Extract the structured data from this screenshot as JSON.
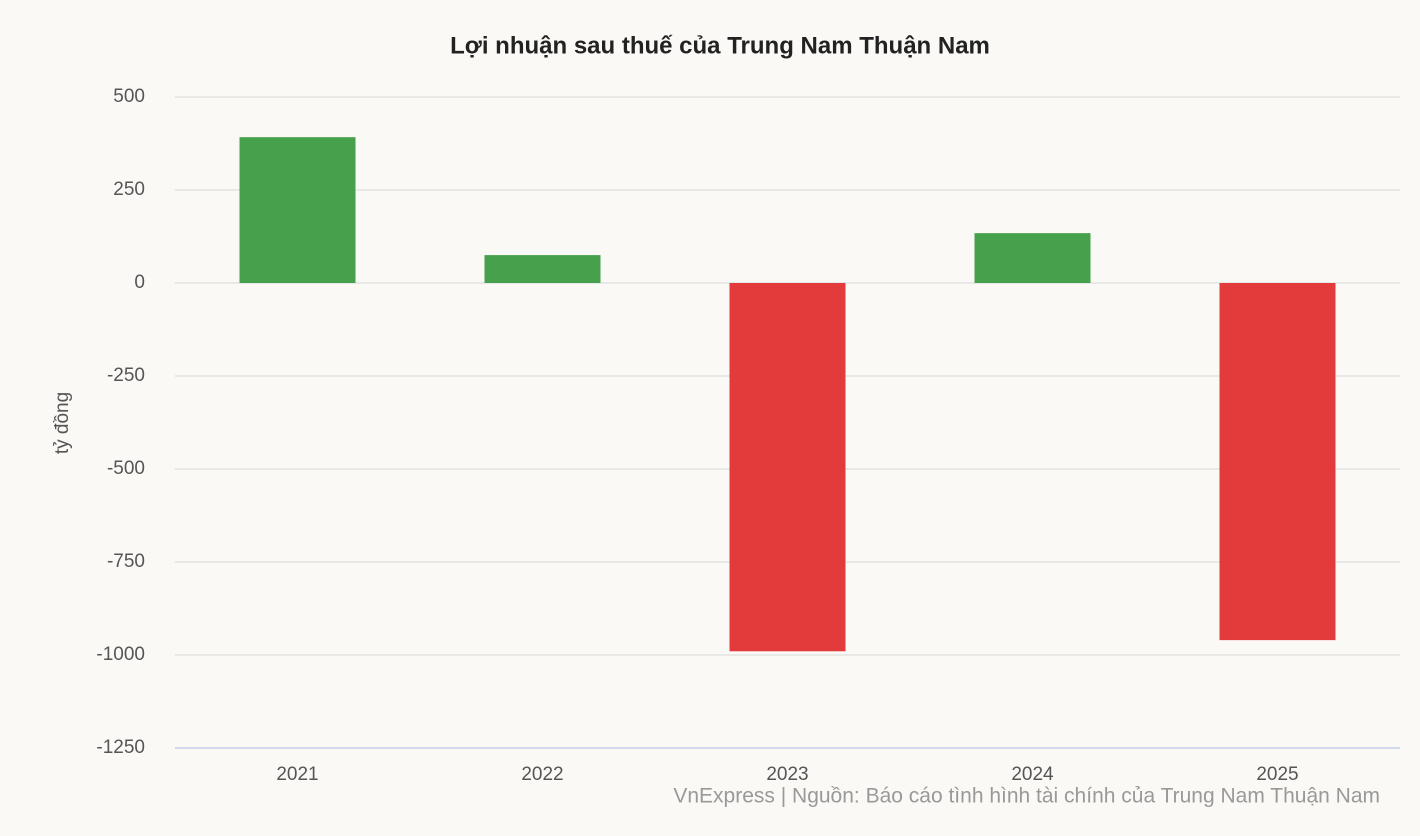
{
  "chart_data": {
    "type": "bar",
    "title": "Lợi nhuận sau thuế của Trung Nam Thuận Nam",
    "y_label": "tỷ đồng",
    "source": "VnExpress | Nguồn: Báo cáo tình hình tài chính của Trung Nam Thuận Nam",
    "categories": [
      "2021",
      "2022",
      "2023",
      "2024",
      "2025"
    ],
    "values": [
      392,
      75,
      -990,
      134,
      -960
    ],
    "positive_color": "#47a04b",
    "negative_color": "#e33b3c",
    "ylim": [
      -1250,
      500
    ],
    "yticks": [
      500,
      250,
      0,
      -250,
      -500,
      -750,
      -1000,
      -1250
    ],
    "grid": true
  }
}
